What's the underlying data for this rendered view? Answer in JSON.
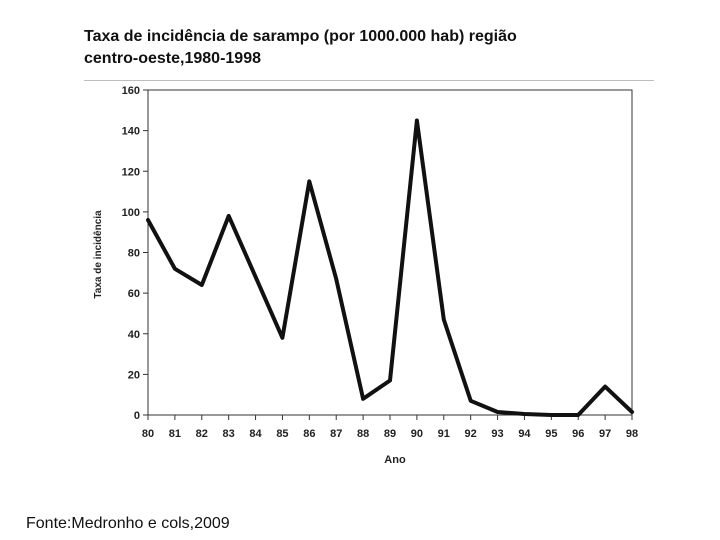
{
  "title_lines": [
    "Taxa de incidência de sarampo (por 1000.000 hab) região",
    "centro-oeste,1980-1998"
  ],
  "source": "Fonte:Medronho e cols,2009",
  "chart_data": {
    "type": "line",
    "title": "Taxa de incidência de sarampo (por 1000.000 hab) região centro-oeste,1980-1998",
    "xlabel": "Ano",
    "ylabel": "Taxa de incidência",
    "x": [
      "80",
      "81",
      "82",
      "83",
      "84",
      "85",
      "86",
      "87",
      "88",
      "89",
      "90",
      "91",
      "92",
      "93",
      "94",
      "95",
      "96",
      "97",
      "98"
    ],
    "series": [
      {
        "values": [
          96,
          72,
          64,
          98,
          68,
          38,
          115,
          67,
          8,
          17,
          145,
          47,
          7,
          1.5,
          0.5,
          0,
          0,
          14,
          1.5
        ]
      }
    ],
    "ylim": [
      0,
      160
    ],
    "yticks": [
      "0",
      "20",
      "40",
      "60",
      "80",
      "100",
      "120",
      "140",
      "160"
    ],
    "grid": false,
    "line_color": "#111111"
  }
}
